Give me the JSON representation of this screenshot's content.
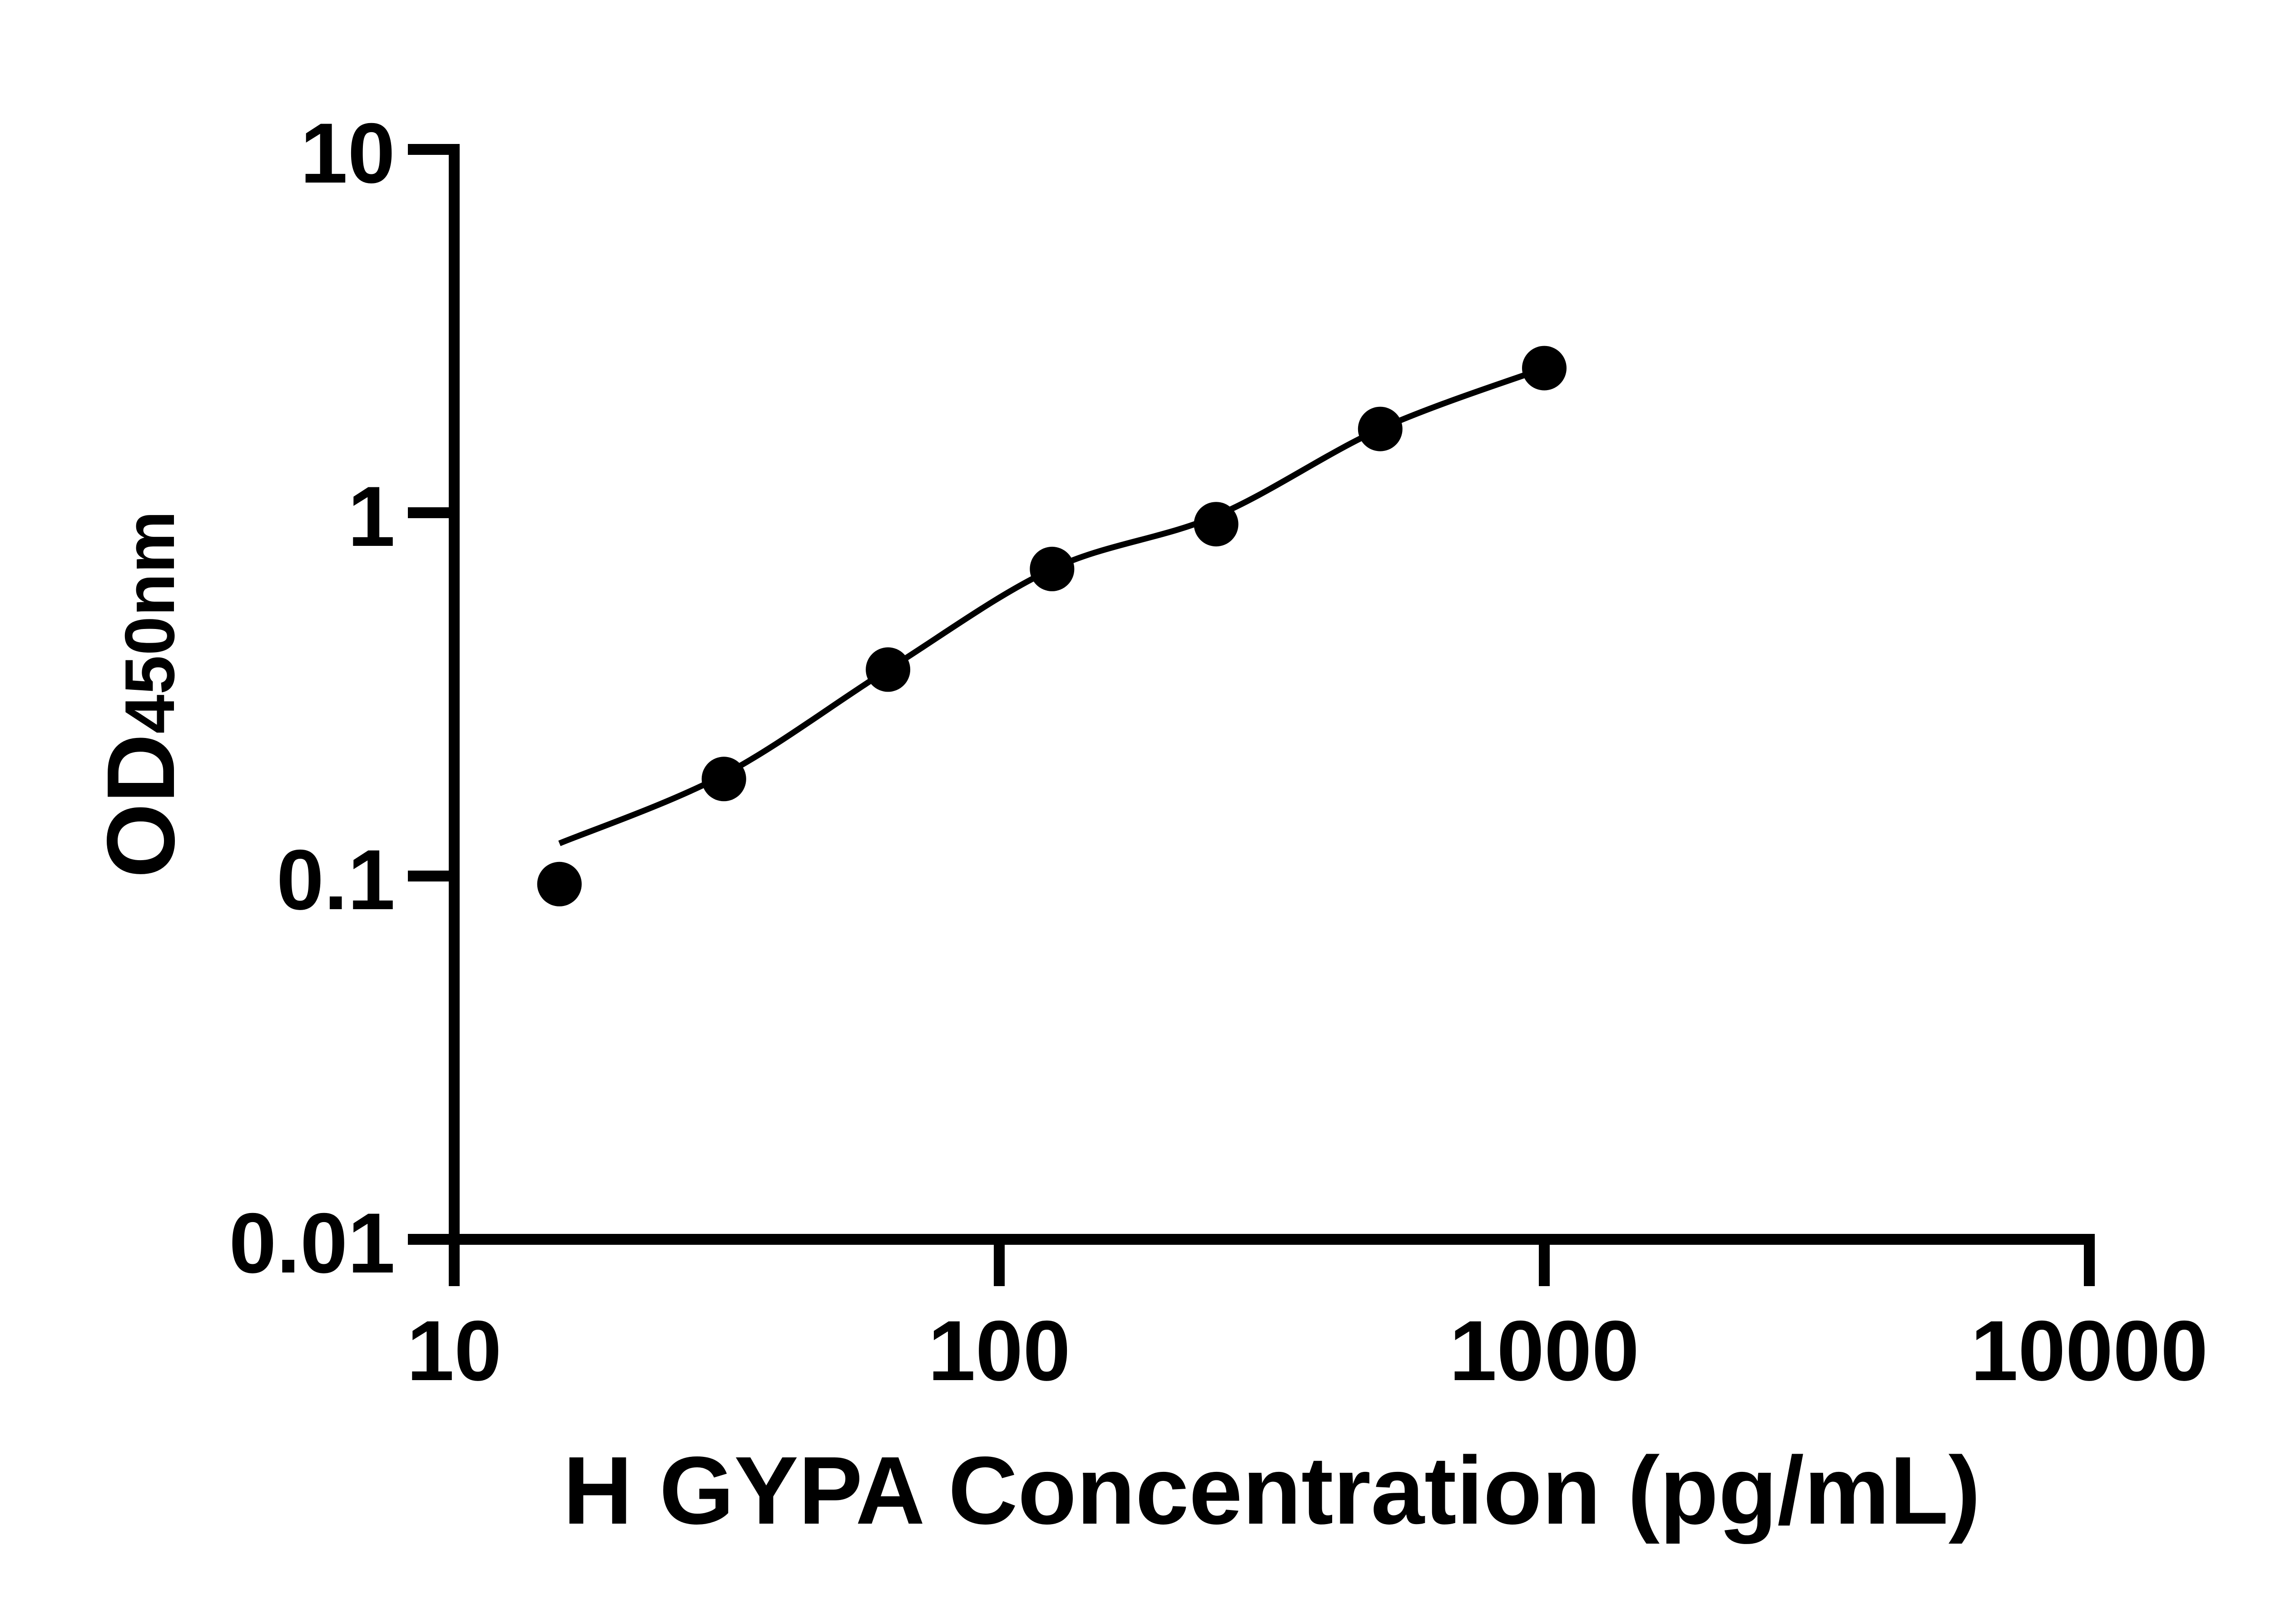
{
  "colors": {
    "ink": "#000000",
    "background": "#ffffff"
  },
  "axes": {
    "x": {
      "label": "H GYPA Concentration (pg/mL)",
      "scale": "log10",
      "min": 10,
      "max": 10000,
      "ticks": [
        {
          "value": 10,
          "label": "10"
        },
        {
          "value": 100,
          "label": "100"
        },
        {
          "value": 1000,
          "label": "1000"
        },
        {
          "value": 10000,
          "label": "10000"
        }
      ]
    },
    "y": {
      "label_main": "OD",
      "label_sub": "450nm",
      "scale": "log10",
      "min": 0.01,
      "max": 10,
      "ticks": [
        {
          "value": 10,
          "label": "10"
        },
        {
          "value": 1,
          "label": "1"
        },
        {
          "value": 0.1,
          "label": "0.1"
        },
        {
          "value": 0.01,
          "label": "0.01"
        }
      ]
    }
  },
  "chart_data": {
    "type": "scatter",
    "title": "",
    "xlabel": "H GYPA Concentration (pg/mL)",
    "ylabel": "OD450nm",
    "x_scale": "log10",
    "y_scale": "log10",
    "xlim": [
      10,
      10000
    ],
    "ylim": [
      0.01,
      10
    ],
    "x_tick_labels": [
      "10",
      "100",
      "1000",
      "10000"
    ],
    "y_tick_labels": [
      "10",
      "1",
      "0.1",
      "0.01"
    ],
    "grid": false,
    "legend": null,
    "series": [
      {
        "name": "H GYPA standard points",
        "marker": "filled-circle",
        "color": "#000000",
        "points": [
          [
            15.6,
            0.095
          ],
          [
            31.25,
            0.185
          ],
          [
            62.5,
            0.37
          ],
          [
            125,
            0.7
          ],
          [
            250,
            0.93
          ],
          [
            500,
            1.7
          ],
          [
            1000,
            2.5
          ]
        ]
      }
    ],
    "fit_curve": {
      "name": "fitted standard curve",
      "color": "#000000",
      "points": [
        [
          15.6,
          0.123
        ],
        [
          31.25,
          0.19
        ],
        [
          62.5,
          0.37
        ],
        [
          125,
          0.7
        ],
        [
          250,
          0.98
        ],
        [
          500,
          1.7
        ],
        [
          1000,
          2.5
        ]
      ]
    }
  }
}
